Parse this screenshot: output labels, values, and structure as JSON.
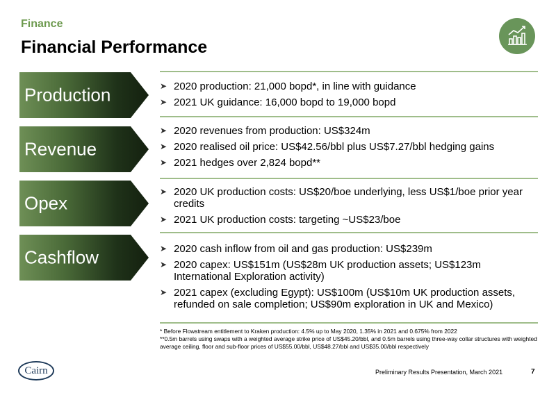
{
  "header": {
    "section": "Finance",
    "title": "Financial Performance",
    "icon": "bar-chart-growth-icon"
  },
  "rows": [
    {
      "label": "Production",
      "bullets": [
        "2020 production: 21,000 bopd*, in line with guidance",
        "2021 UK guidance: 16,000 bopd to 19,000 bopd"
      ]
    },
    {
      "label": "Revenue",
      "bullets": [
        "2020 revenues from production: US$324m",
        "2020 realised oil price: US$42.56/bbl plus US$7.27/bbl hedging gains",
        "2021 hedges over 2,824 bopd**"
      ]
    },
    {
      "label": "Opex",
      "bullets": [
        "2020 UK production costs: US$20/boe underlying, less US$1/boe prior year credits",
        "2021 UK production costs: targeting ~US$23/boe"
      ]
    },
    {
      "label": "Cashflow",
      "bullets": [
        "2020 cash inflow from oil and gas production: US$239m",
        "2020 capex: US$151m (US$28m UK production assets; US$123m International Exploration activity)",
        "2021 capex (excluding Egypt): US$100m (US$10m UK production assets, refunded on sale completion; US$90m exploration in UK and Mexico)"
      ]
    }
  ],
  "footnotes": [
    "* Before Flowstream entitlement to Kraken production: 4.5% up to May 2020, 1.35% in 2021 and 0.675% from 2022",
    "**0.5m barrels using swaps with a weighted average strike price of US$45.20/bbl, and 0.5m barrels using three-way collar structures with weighted average ceiling, floor and sub-floor prices of US$55.00/bbl, US$48.27/bbl and US$35.00/bbl respectively"
  ],
  "footer": {
    "logo": "Cairn",
    "text": "Preliminary Results Presentation, March 2021",
    "page": "7"
  },
  "colors": {
    "accent_green": "#6d9a4f",
    "rule_green": "#9fbd8a",
    "icon_circle": "#69955a",
    "tab_dark": "#14200f",
    "logo_navy": "#1f3b5a"
  }
}
